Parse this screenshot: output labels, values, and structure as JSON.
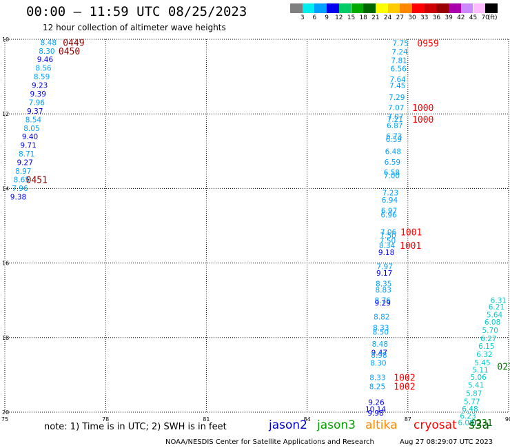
{
  "header": {
    "title": "00:00 – 11:59 UTC 08/25/2023",
    "subtitle": "12 hour collection of altimeter wave heights"
  },
  "legend": {
    "unit_label": "(ft)",
    "bins": [
      {
        "label": "3",
        "color": "#808080"
      },
      {
        "label": "6",
        "color": "#00eeee"
      },
      {
        "label": "9",
        "color": "#00a0ff"
      },
      {
        "label": "12",
        "color": "#0000ee"
      },
      {
        "label": "15",
        "color": "#00cc66"
      },
      {
        "label": "18",
        "color": "#00aa00"
      },
      {
        "label": "21",
        "color": "#006600"
      },
      {
        "label": "24",
        "color": "#ffff00"
      },
      {
        "label": "27",
        "color": "#ffcc00"
      },
      {
        "label": "30",
        "color": "#ff8800"
      },
      {
        "label": "33",
        "color": "#ff0000"
      },
      {
        "label": "36",
        "color": "#cc0000"
      },
      {
        "label": "39",
        "color": "#990000"
      },
      {
        "label": "42",
        "color": "#aa00aa"
      },
      {
        "label": "45",
        "color": "#cc88ff"
      },
      {
        "label": "70",
        "color": "#ffbbff"
      },
      {
        "label": "",
        "color": "#000000"
      }
    ]
  },
  "footer": {
    "note": "note: 1) Time is in UTC; 2) SWH is in feet",
    "credit": "NOAA/NESDIS Center for Satellite Applications and Research",
    "timestamp": "Aug 27 08:29:07 UTC 2023"
  },
  "satellites": [
    {
      "name": "jason2",
      "color": "#0000cc"
    },
    {
      "name": "jason3",
      "color": "#00a000"
    },
    {
      "name": "altika",
      "color": "#ff8800"
    },
    {
      "name": "cryosat",
      "color": "#ff0000"
    },
    {
      "name": "s3a",
      "color": "#006600"
    }
  ],
  "chart_data": {
    "type": "scatter",
    "xlim": [
      75,
      90
    ],
    "ylim": [
      -20,
      -10
    ],
    "x_ticks": [
      75,
      78,
      81,
      84,
      87,
      90
    ],
    "y_ticks": [
      -10,
      -12,
      -14,
      -16,
      -18,
      -20
    ],
    "x_tick_labels": [
      "75",
      "78",
      "81",
      "84",
      "87",
      "90"
    ],
    "y_tick_labels": [
      "10",
      "12",
      "14",
      "16",
      "18",
      "20"
    ],
    "grid": true,
    "colors": {
      "c9": "#00a0ff",
      "c12": "#0000ee",
      "c6": "#00cccc",
      "time_dark": "#8b0000",
      "time_red": "#ff0000",
      "time_green": "#007700"
    },
    "points": [
      {
        "x": 76.3,
        "y": -10.08,
        "v": "8.48",
        "c": "c9"
      },
      {
        "x": 76.25,
        "y": -10.31,
        "v": "8.30",
        "c": "c9"
      },
      {
        "x": 76.2,
        "y": -10.54,
        "v": "9.46",
        "c": "c12"
      },
      {
        "x": 76.15,
        "y": -10.77,
        "v": "8.56",
        "c": "c9"
      },
      {
        "x": 76.1,
        "y": -11.0,
        "v": "8.59",
        "c": "c9"
      },
      {
        "x": 76.04,
        "y": -11.23,
        "v": "9.23",
        "c": "c12"
      },
      {
        "x": 75.99,
        "y": -11.46,
        "v": "9.39",
        "c": "c12"
      },
      {
        "x": 75.95,
        "y": -11.69,
        "v": "7.96",
        "c": "c9"
      },
      {
        "x": 75.9,
        "y": -11.92,
        "v": "9.37",
        "c": "c12"
      },
      {
        "x": 75.85,
        "y": -12.15,
        "v": "8.54",
        "c": "c9"
      },
      {
        "x": 75.8,
        "y": -12.38,
        "v": "8.05",
        "c": "c9"
      },
      {
        "x": 75.75,
        "y": -12.61,
        "v": "9.40",
        "c": "c12"
      },
      {
        "x": 75.7,
        "y": -12.84,
        "v": "9.71",
        "c": "c12"
      },
      {
        "x": 75.65,
        "y": -13.07,
        "v": "8.71",
        "c": "c9"
      },
      {
        "x": 75.6,
        "y": -13.3,
        "v": "9.27",
        "c": "c12"
      },
      {
        "x": 75.55,
        "y": -13.53,
        "v": "8.97",
        "c": "c9"
      },
      {
        "x": 75.5,
        "y": -13.76,
        "v": "8.65",
        "c": "c9"
      },
      {
        "x": 75.45,
        "y": -13.99,
        "v": "7.96",
        "c": "c9"
      },
      {
        "x": 75.4,
        "y": -14.22,
        "v": "9.38",
        "c": "c12"
      },
      {
        "x": 86.78,
        "y": -10.1,
        "v": "7.75",
        "c": "c9"
      },
      {
        "x": 86.76,
        "y": -10.33,
        "v": "7.24",
        "c": "c9"
      },
      {
        "x": 86.74,
        "y": -10.56,
        "v": "7.81",
        "c": "c9"
      },
      {
        "x": 86.72,
        "y": -10.79,
        "v": "6.56",
        "c": "c9"
      },
      {
        "x": 86.7,
        "y": -11.07,
        "v": "7.64",
        "c": "c9"
      },
      {
        "x": 86.69,
        "y": -11.24,
        "v": "7.45",
        "c": "c9"
      },
      {
        "x": 86.67,
        "y": -11.55,
        "v": "7.29",
        "c": "c9"
      },
      {
        "x": 86.65,
        "y": -11.83,
        "v": "7.07",
        "c": "c9"
      },
      {
        "x": 86.63,
        "y": -12.07,
        "v": "7.07",
        "c": "c9"
      },
      {
        "x": 86.62,
        "y": -12.14,
        "v": "7.21",
        "c": "c9"
      },
      {
        "x": 86.61,
        "y": -12.31,
        "v": "6.87",
        "c": "c9"
      },
      {
        "x": 86.59,
        "y": -12.6,
        "v": "6.73",
        "c": "c9"
      },
      {
        "x": 86.58,
        "y": -12.68,
        "v": "6.59",
        "c": "c9"
      },
      {
        "x": 86.56,
        "y": -13.0,
        "v": "6.48",
        "c": "c9"
      },
      {
        "x": 86.54,
        "y": -13.29,
        "v": "6.59",
        "c": "c9"
      },
      {
        "x": 86.52,
        "y": -13.57,
        "v": "6.58",
        "c": "c9"
      },
      {
        "x": 86.52,
        "y": -13.65,
        "v": "7.00",
        "c": "c9"
      },
      {
        "x": 86.48,
        "y": -14.11,
        "v": "7.23",
        "c": "c9"
      },
      {
        "x": 86.46,
        "y": -14.31,
        "v": "6.94",
        "c": "c9"
      },
      {
        "x": 86.44,
        "y": -14.59,
        "v": "6.97",
        "c": "c9"
      },
      {
        "x": 86.43,
        "y": -14.7,
        "v": "6.96",
        "c": "c9"
      },
      {
        "x": 86.42,
        "y": -15.17,
        "v": "7.06",
        "c": "c9"
      },
      {
        "x": 86.41,
        "y": -15.26,
        "v": "7.50",
        "c": "c9"
      },
      {
        "x": 86.4,
        "y": -15.4,
        "v": "7.50",
        "c": "c9"
      },
      {
        "x": 86.38,
        "y": -15.53,
        "v": "8.34",
        "c": "c9"
      },
      {
        "x": 86.36,
        "y": -15.71,
        "v": "9.18",
        "c": "c12"
      },
      {
        "x": 86.31,
        "y": -16.09,
        "v": "7.97",
        "c": "c9"
      },
      {
        "x": 86.3,
        "y": -16.27,
        "v": "9.17",
        "c": "c12"
      },
      {
        "x": 86.28,
        "y": -16.55,
        "v": "8.35",
        "c": "c9"
      },
      {
        "x": 86.27,
        "y": -16.72,
        "v": "8.83",
        "c": "c9"
      },
      {
        "x": 86.25,
        "y": -17.0,
        "v": "8.76",
        "c": "c9"
      },
      {
        "x": 86.25,
        "y": -17.07,
        "v": "9.29",
        "c": "c12"
      },
      {
        "x": 86.22,
        "y": -17.44,
        "v": "8.82",
        "c": "c9"
      },
      {
        "x": 86.2,
        "y": -17.74,
        "v": "8.33",
        "c": "c9"
      },
      {
        "x": 86.19,
        "y": -17.85,
        "v": "8.50",
        "c": "c9"
      },
      {
        "x": 86.17,
        "y": -18.17,
        "v": "8.48",
        "c": "c9"
      },
      {
        "x": 86.15,
        "y": -18.4,
        "v": "9.47",
        "c": "c12"
      },
      {
        "x": 86.14,
        "y": -18.47,
        "v": "8.98",
        "c": "c9"
      },
      {
        "x": 86.12,
        "y": -18.68,
        "v": "8.30",
        "c": "c9"
      },
      {
        "x": 86.1,
        "y": -19.07,
        "v": "8.33",
        "c": "c9"
      },
      {
        "x": 86.09,
        "y": -19.31,
        "v": "8.25",
        "c": "c9"
      },
      {
        "x": 86.06,
        "y": -19.73,
        "v": "9.26",
        "c": "c12"
      },
      {
        "x": 86.04,
        "y": -19.92,
        "v": "10.14",
        "c": "c12"
      },
      {
        "x": 86.04,
        "y": -20.02,
        "v": "9.98",
        "c": "c12"
      },
      {
        "x": 89.7,
        "y": -17.0,
        "v": "6.31",
        "c": "c6"
      },
      {
        "x": 89.64,
        "y": -17.17,
        "v": "6.21",
        "c": "c6"
      },
      {
        "x": 89.58,
        "y": -17.38,
        "v": "5.64",
        "c": "c6"
      },
      {
        "x": 89.52,
        "y": -17.58,
        "v": "6.08",
        "c": "c6"
      },
      {
        "x": 89.45,
        "y": -17.8,
        "v": "5.70",
        "c": "c6"
      },
      {
        "x": 89.4,
        "y": -18.02,
        "v": "6.27",
        "c": "c6"
      },
      {
        "x": 89.34,
        "y": -18.23,
        "v": "6.15",
        "c": "c6"
      },
      {
        "x": 89.28,
        "y": -18.45,
        "v": "6.32",
        "c": "c6"
      },
      {
        "x": 89.22,
        "y": -18.67,
        "v": "5.45",
        "c": "c6"
      },
      {
        "x": 89.16,
        "y": -18.86,
        "v": "5.11",
        "c": "c6"
      },
      {
        "x": 89.1,
        "y": -19.06,
        "v": "5.06",
        "c": "c6"
      },
      {
        "x": 89.03,
        "y": -19.27,
        "v": "5.41",
        "c": "c6"
      },
      {
        "x": 88.97,
        "y": -19.49,
        "v": "5.87",
        "c": "c6"
      },
      {
        "x": 88.91,
        "y": -19.71,
        "v": "5.77",
        "c": "c6"
      },
      {
        "x": 88.85,
        "y": -19.91,
        "v": "6.48",
        "c": "c6"
      },
      {
        "x": 88.79,
        "y": -20.1,
        "v": "6.23",
        "c": "c6"
      },
      {
        "x": 88.73,
        "y": -20.28,
        "v": "6.08",
        "c": "c6"
      }
    ],
    "time_labels": [
      {
        "x": 77.05,
        "y": -10.08,
        "t": "0449",
        "c": "time_dark"
      },
      {
        "x": 76.92,
        "y": -10.31,
        "t": "0450",
        "c": "time_dark"
      },
      {
        "x": 75.95,
        "y": -13.76,
        "t": "0451",
        "c": "time_dark"
      },
      {
        "x": 87.6,
        "y": -10.1,
        "t": "0959",
        "c": "time_red"
      },
      {
        "x": 87.45,
        "y": -11.83,
        "t": "1000",
        "c": "time_red"
      },
      {
        "x": 87.45,
        "y": -12.14,
        "t": "1000",
        "c": "time_red"
      },
      {
        "x": 87.1,
        "y": -15.17,
        "t": "1001",
        "c": "time_red"
      },
      {
        "x": 87.08,
        "y": -15.53,
        "t": "1001",
        "c": "time_red"
      },
      {
        "x": 86.9,
        "y": -19.07,
        "t": "1002",
        "c": "time_red"
      },
      {
        "x": 86.9,
        "y": -19.31,
        "t": "1002",
        "c": "time_red"
      },
      {
        "x": 89.9,
        "y": -18.77,
        "t": "023",
        "c": "time_green"
      },
      {
        "x": 89.2,
        "y": -20.28,
        "t": "0231",
        "c": "time_green"
      }
    ]
  }
}
